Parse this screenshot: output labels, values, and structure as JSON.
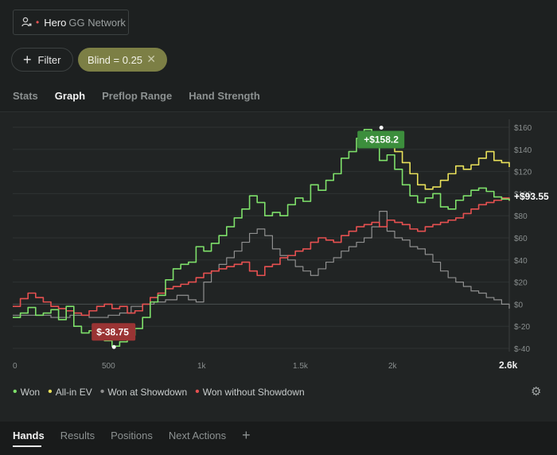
{
  "player": {
    "name": "Hero",
    "network": "GG Network"
  },
  "filter": {
    "label": "Filter"
  },
  "chip": {
    "label": "Blind = 0.25"
  },
  "tabs": [
    "Stats",
    "Graph",
    "Preflop Range",
    "Hand Strength"
  ],
  "active_tab": "Graph",
  "bottom_tabs": [
    "Hands",
    "Results",
    "Positions",
    "Next Actions"
  ],
  "active_bottom_tab": "Hands",
  "colors": {
    "won": "#7ee06a",
    "allin": "#e8e05a",
    "showdown": "#8f8f8f",
    "noshowdown": "#e55050",
    "max": "#3c8e3c",
    "min": "#9a3434"
  },
  "chart_data": {
    "type": "line",
    "xlim": [
      0,
      2600
    ],
    "ylim": [
      -40,
      160
    ],
    "x_ticks": [
      0,
      500,
      1000,
      1500,
      2000,
      2600
    ],
    "x_tick_labels": [
      "0",
      "500",
      "1k",
      "1.5k",
      "2k",
      "2.6k"
    ],
    "y_ticks": [
      160,
      140,
      120,
      100,
      80,
      60,
      40,
      20,
      0,
      -20,
      -40
    ],
    "y_tick_labels": [
      "$160",
      "$140",
      "$120",
      "$100",
      "$80",
      "$60",
      "$40",
      "$20",
      "$0",
      "$-20",
      "$-40"
    ],
    "max_label": "+$158.2",
    "max_point": {
      "x": 1930,
      "y": 158.2
    },
    "min_label": "$-38.75",
    "min_point": {
      "x": 530,
      "y": -38.75
    },
    "end_label": "+$93.55",
    "series": [
      {
        "name": "Won",
        "color_key": "won",
        "x": [
          0,
          40,
          80,
          120,
          160,
          200,
          240,
          280,
          320,
          360,
          400,
          440,
          480,
          520,
          560,
          600,
          640,
          680,
          720,
          760,
          800,
          840,
          880,
          920,
          960,
          1000,
          1040,
          1080,
          1120,
          1160,
          1200,
          1240,
          1280,
          1320,
          1360,
          1400,
          1440,
          1480,
          1520,
          1560,
          1600,
          1640,
          1680,
          1720,
          1760,
          1800,
          1840,
          1880,
          1920,
          1960,
          2000,
          2040,
          2080,
          2120,
          2160,
          2200,
          2240,
          2280,
          2320,
          2360,
          2400,
          2440,
          2480,
          2520,
          2560,
          2600
        ],
        "y": [
          -12,
          -8,
          -3,
          -10,
          -8,
          -5,
          -14,
          -2,
          -20,
          -26,
          -24,
          -31,
          -33,
          -38,
          -34,
          -28,
          -22,
          -12,
          2,
          8,
          22,
          32,
          36,
          38,
          52,
          48,
          55,
          62,
          70,
          78,
          86,
          98,
          92,
          80,
          83,
          80,
          90,
          96,
          93,
          108,
          103,
          112,
          118,
          132,
          138,
          150,
          158,
          145,
          130,
          135,
          122,
          108,
          98,
          92,
          96,
          100,
          88,
          86,
          94,
          98,
          103,
          105,
          102,
          97,
          95,
          93.55
        ]
      },
      {
        "name": "All-in EV",
        "color_key": "allin",
        "x": [
          1880,
          1920,
          1960,
          2000,
          2040,
          2080,
          2120,
          2160,
          2200,
          2240,
          2280,
          2320,
          2360,
          2400,
          2440,
          2480,
          2520,
          2560,
          2600
        ],
        "y": [
          150,
          156,
          145,
          138,
          128,
          118,
          108,
          104,
          106,
          112,
          118,
          125,
          122,
          126,
          132,
          138,
          130,
          128,
          124
        ]
      },
      {
        "name": "Won at Showdown",
        "color_key": "showdown",
        "x": [
          0,
          100,
          200,
          300,
          400,
          500,
          560,
          620,
          680,
          740,
          800,
          860,
          920,
          960,
          1000,
          1040,
          1080,
          1120,
          1160,
          1200,
          1240,
          1280,
          1320,
          1360,
          1400,
          1440,
          1480,
          1520,
          1560,
          1600,
          1640,
          1680,
          1720,
          1760,
          1800,
          1840,
          1880,
          1920,
          1960,
          2000,
          2040,
          2080,
          2120,
          2160,
          2200,
          2240,
          2280,
          2320,
          2360,
          2400,
          2440,
          2480,
          2520,
          2560,
          2600
        ],
        "y": [
          -10,
          -10,
          -12,
          -10,
          -12,
          -10,
          -8,
          -2,
          0,
          2,
          4,
          8,
          4,
          2,
          20,
          30,
          36,
          42,
          48,
          56,
          64,
          68,
          62,
          50,
          44,
          40,
          34,
          30,
          26,
          32,
          38,
          42,
          48,
          52,
          56,
          60,
          70,
          84,
          66,
          60,
          58,
          52,
          50,
          45,
          38,
          30,
          24,
          20,
          16,
          12,
          10,
          6,
          4,
          0,
          -4
        ]
      },
      {
        "name": "Won without Showdown",
        "color_key": "noshowdown",
        "x": [
          0,
          40,
          80,
          120,
          160,
          200,
          240,
          280,
          320,
          360,
          400,
          440,
          480,
          520,
          560,
          600,
          640,
          680,
          720,
          760,
          800,
          840,
          880,
          920,
          960,
          1000,
          1040,
          1080,
          1120,
          1160,
          1200,
          1240,
          1280,
          1320,
          1360,
          1400,
          1440,
          1480,
          1520,
          1560,
          1600,
          1640,
          1680,
          1720,
          1760,
          1800,
          1840,
          1880,
          1920,
          1960,
          2000,
          2040,
          2080,
          2120,
          2160,
          2200,
          2240,
          2280,
          2320,
          2360,
          2400,
          2440,
          2480,
          2520,
          2560,
          2600
        ],
        "y": [
          -2,
          5,
          10,
          6,
          2,
          -2,
          -4,
          -6,
          -8,
          -10,
          -6,
          -2,
          0,
          -4,
          -2,
          -8,
          -6,
          0,
          6,
          10,
          14,
          16,
          18,
          20,
          24,
          28,
          30,
          32,
          34,
          36,
          38,
          30,
          26,
          34,
          36,
          42,
          44,
          48,
          50,
          56,
          60,
          58,
          56,
          62,
          66,
          70,
          72,
          74,
          70,
          76,
          74,
          72,
          68,
          66,
          70,
          72,
          74,
          76,
          78,
          82,
          86,
          90,
          92,
          94,
          96,
          93.55
        ]
      }
    ]
  }
}
